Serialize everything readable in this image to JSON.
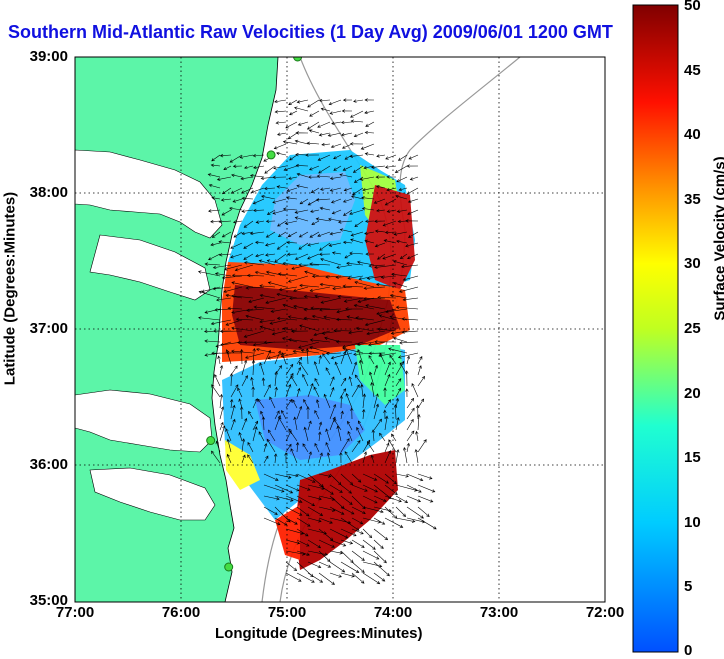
{
  "title": "Southern Mid-Atlantic Raw Velocities (1 Day Avg) 2009/06/01 1200 GMT",
  "x_axis": {
    "title": "Longitude (Degrees:Minutes)",
    "ticks": [
      "77:00",
      "76:00",
      "75:00",
      "74:00",
      "73:00",
      "72:00"
    ]
  },
  "y_axis": {
    "title": "Latitude (Degrees:Minutes)",
    "ticks": [
      "39:00",
      "38:00",
      "37:00",
      "36:00",
      "35:00"
    ]
  },
  "colorbar": {
    "title": "Surface Velocity (cm/s)",
    "ticks": [
      "50",
      "45",
      "40",
      "35",
      "30",
      "25",
      "20",
      "15",
      "10",
      "5",
      "0"
    ],
    "range": [
      0,
      50
    ]
  },
  "colors": {
    "land": "#5cf5a8",
    "water": "#ffffff",
    "title": "#1010e0",
    "stations": "#44dd44"
  },
  "stations": [
    {
      "lon": -74.9,
      "lat": 39.0
    },
    {
      "lon": -75.15,
      "lat": 38.28
    },
    {
      "lon": -75.72,
      "lat": 36.18
    },
    {
      "lon": -75.55,
      "lat": 35.25
    }
  ]
}
